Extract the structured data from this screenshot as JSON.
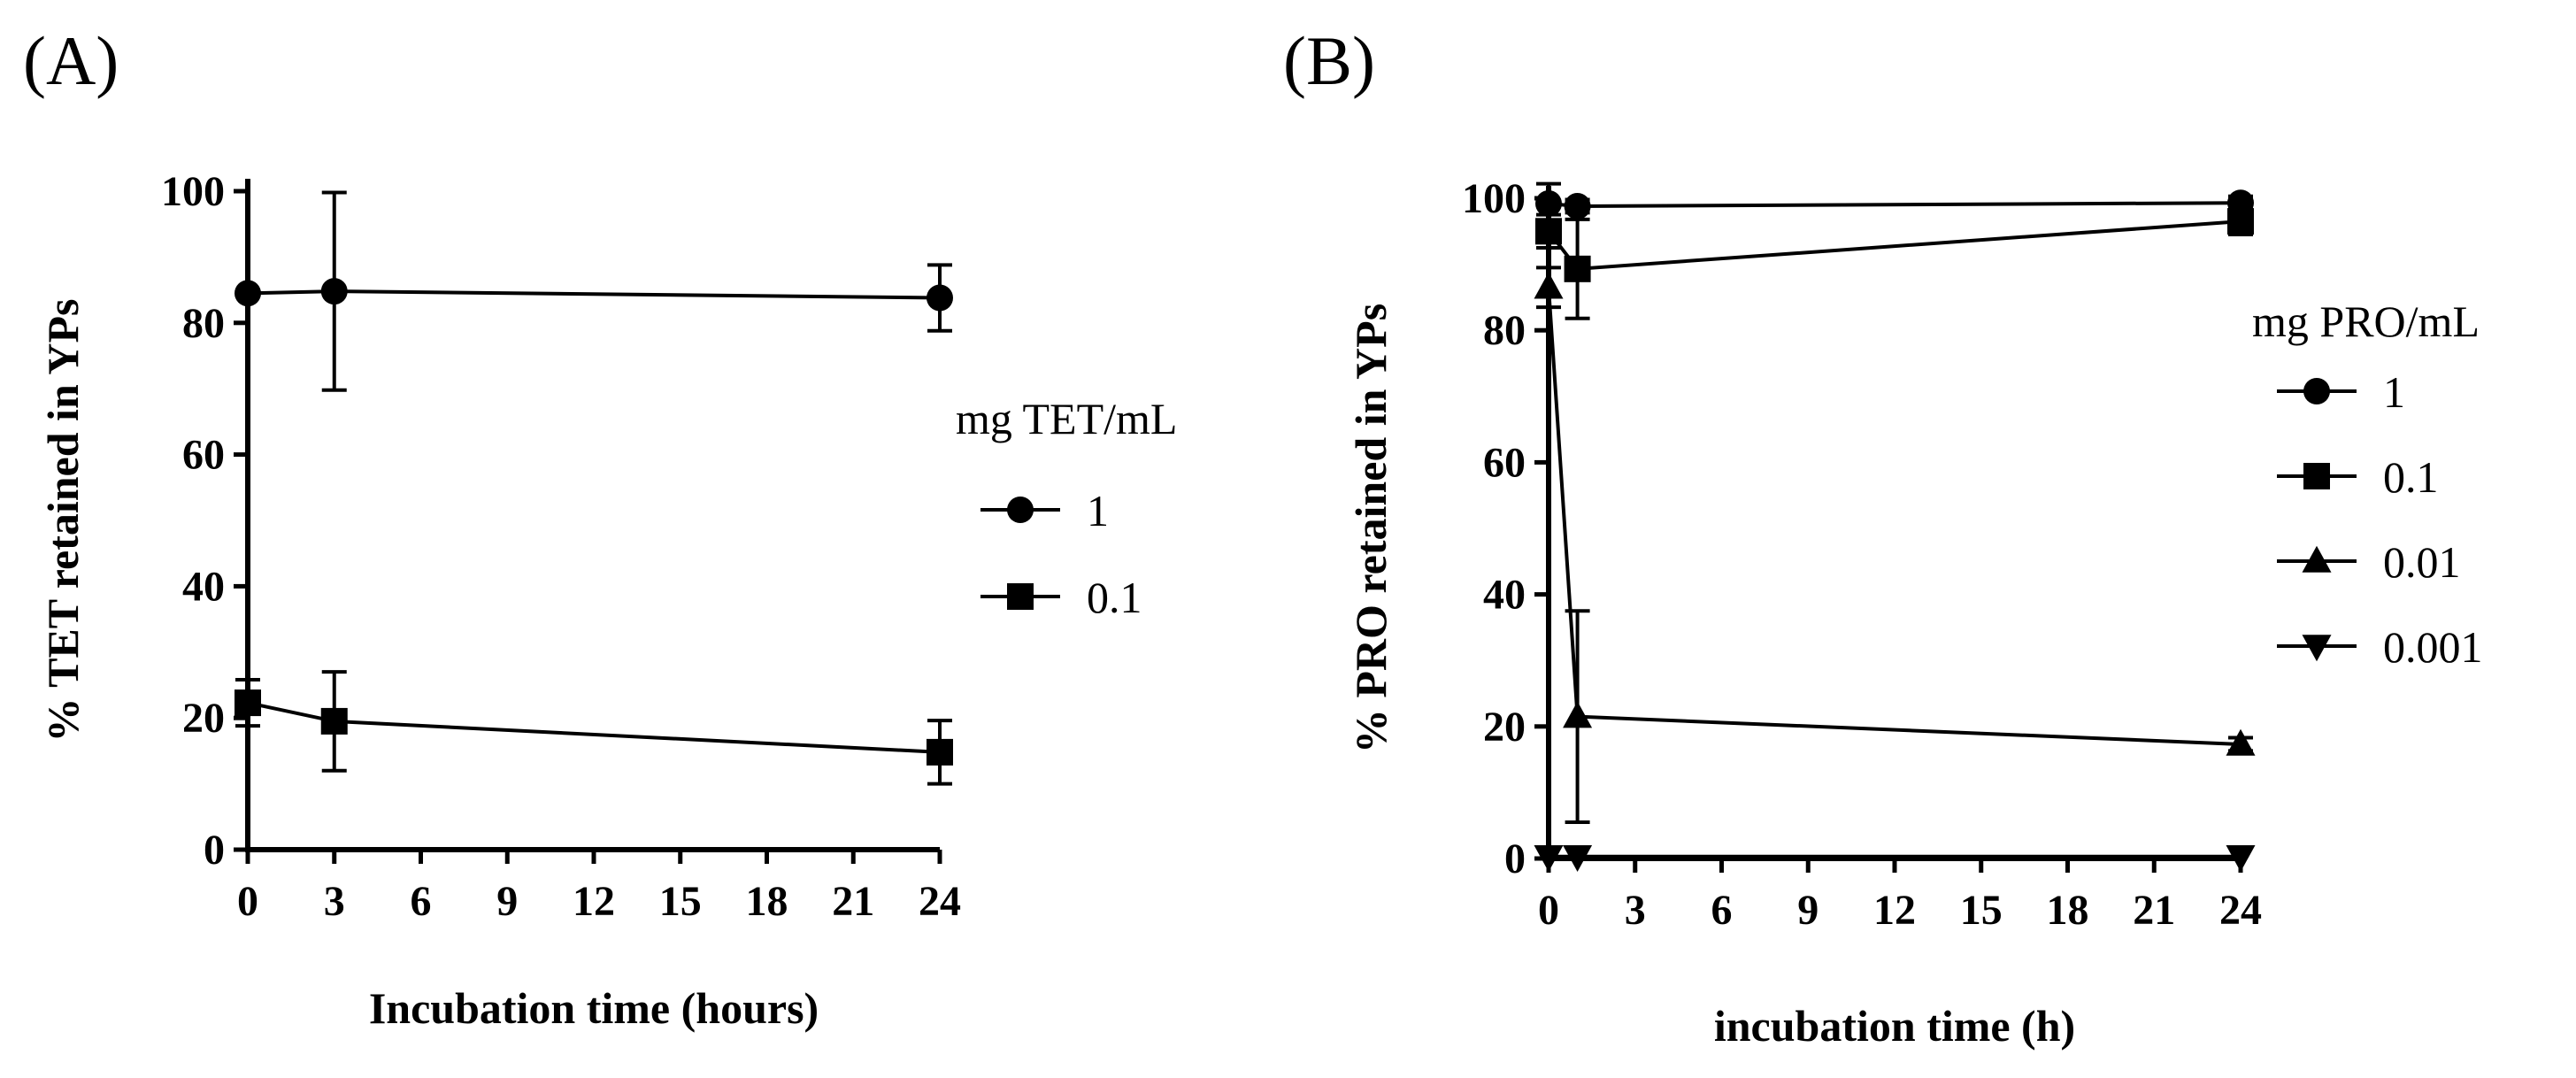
{
  "panels": {
    "a_label": "(A)",
    "b_label": "(B)"
  },
  "chart_data": [
    {
      "id": "A",
      "type": "line",
      "panel_label": "(A)",
      "xlabel": "Incubation time (hours)",
      "ylabel": "% TET retained in YPs",
      "xlim": [
        0,
        24
      ],
      "ylim": [
        0,
        100
      ],
      "xticks": [
        0,
        3,
        6,
        9,
        12,
        15,
        18,
        21,
        24
      ],
      "yticks": [
        0,
        20,
        40,
        60,
        80,
        100
      ],
      "grid": false,
      "legend_title": "mg TET/mL",
      "legend_position": "right",
      "series": [
        {
          "name": "1",
          "marker": "circle",
          "x": [
            0,
            3,
            24
          ],
          "y": [
            84.5,
            84.8,
            83.8
          ],
          "err": [
            0,
            15,
            5
          ]
        },
        {
          "name": "0.1",
          "marker": "square",
          "x": [
            0,
            3,
            24
          ],
          "y": [
            22.3,
            19.5,
            14.8
          ],
          "err": [
            3.5,
            7.5,
            4.8
          ]
        }
      ]
    },
    {
      "id": "B",
      "type": "line",
      "panel_label": "(B)",
      "xlabel": "incubation time (h)",
      "ylabel": "% PRO retained in YPs",
      "xlim": [
        0,
        24
      ],
      "ylim": [
        0,
        100
      ],
      "xticks": [
        0,
        3,
        6,
        9,
        12,
        15,
        18,
        21,
        24
      ],
      "yticks": [
        0,
        20,
        40,
        60,
        80,
        100
      ],
      "grid": false,
      "legend_title": "mg PRO/mL",
      "legend_position": "right",
      "series": [
        {
          "name": "1",
          "marker": "circle",
          "x": [
            0,
            1,
            24
          ],
          "y": [
            99.2,
            98.8,
            99.3
          ],
          "err": [
            3,
            1,
            1
          ]
        },
        {
          "name": "0.1",
          "marker": "square",
          "x": [
            0,
            1,
            24
          ],
          "y": [
            95,
            89.3,
            96.5
          ],
          "err": [
            2.5,
            7.5,
            2
          ]
        },
        {
          "name": "0.01",
          "marker": "triangle",
          "x": [
            0,
            1,
            24
          ],
          "y": [
            86.5,
            21.5,
            17.3
          ],
          "err": [
            3,
            16,
            1
          ]
        },
        {
          "name": "0.001",
          "marker": "triangle-down",
          "x": [
            0,
            1,
            24
          ],
          "y": [
            0.3,
            0.3,
            0.3
          ],
          "err": [
            0,
            0,
            0
          ]
        }
      ]
    }
  ]
}
